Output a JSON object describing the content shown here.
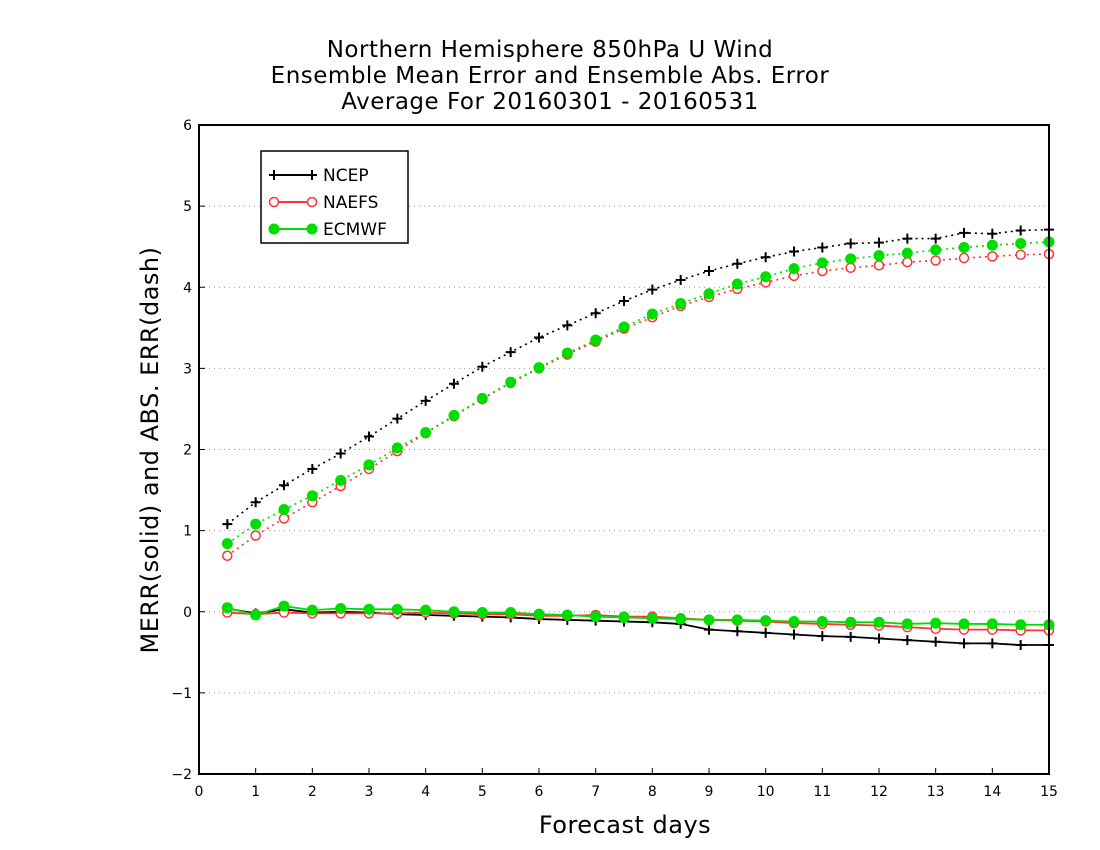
{
  "chart_data": {
    "type": "line",
    "title_lines": [
      "Northern Hemisphere 850hPa U Wind",
      "Ensemble Mean Error and Ensemble Abs. Error",
      "Average For 20160301 - 20160531"
    ],
    "xlabel": "Forecast days",
    "ylabel": "MERR(solid) and ABS. ERR(dash)",
    "xlim": [
      0,
      15
    ],
    "ylim": [
      -2,
      6
    ],
    "xticks": [
      0,
      1,
      2,
      3,
      4,
      5,
      6,
      7,
      8,
      9,
      10,
      11,
      12,
      13,
      14,
      15
    ],
    "yticks": [
      -2,
      -1,
      0,
      1,
      2,
      3,
      4,
      5,
      6
    ],
    "grid": "horizontal dotted",
    "legend_position": "top-left",
    "x": [
      0.5,
      1,
      1.5,
      2,
      2.5,
      3,
      3.5,
      4,
      4.5,
      5,
      5.5,
      6,
      6.5,
      7,
      7.5,
      8,
      8.5,
      9,
      9.5,
      10,
      10.5,
      11,
      11.5,
      12,
      12.5,
      13,
      13.5,
      14,
      14.5,
      15
    ],
    "series": [
      {
        "name": "NCEP",
        "color": "#000000",
        "marker": "plus",
        "mean_error": [
          0.04,
          -0.02,
          0.03,
          -0.01,
          0.0,
          -0.01,
          -0.03,
          -0.04,
          -0.05,
          -0.06,
          -0.07,
          -0.09,
          -0.1,
          -0.11,
          -0.12,
          -0.13,
          -0.15,
          -0.22,
          -0.24,
          -0.26,
          -0.28,
          -0.3,
          -0.31,
          -0.33,
          -0.35,
          -0.37,
          -0.39,
          -0.39,
          -0.41,
          -0.41
        ],
        "abs_error": [
          1.08,
          1.35,
          1.56,
          1.76,
          1.95,
          2.16,
          2.38,
          2.6,
          2.81,
          3.02,
          3.2,
          3.38,
          3.53,
          3.68,
          3.83,
          3.97,
          4.09,
          4.2,
          4.29,
          4.37,
          4.44,
          4.49,
          4.54,
          4.55,
          4.6,
          4.6,
          4.67,
          4.66,
          4.7,
          4.71
        ]
      },
      {
        "name": "NAEFS",
        "color": "#ff3333",
        "marker": "open-circle",
        "mean_error": [
          -0.01,
          -0.03,
          -0.01,
          -0.02,
          -0.02,
          -0.02,
          -0.02,
          -0.01,
          -0.02,
          -0.03,
          -0.03,
          -0.05,
          -0.05,
          -0.04,
          -0.06,
          -0.06,
          -0.08,
          -0.1,
          -0.11,
          -0.12,
          -0.14,
          -0.15,
          -0.16,
          -0.17,
          -0.19,
          -0.21,
          -0.22,
          -0.22,
          -0.23,
          -0.23
        ],
        "abs_error": [
          0.69,
          0.94,
          1.15,
          1.35,
          1.55,
          1.76,
          1.98,
          2.2,
          2.41,
          2.62,
          2.82,
          3.0,
          3.17,
          3.33,
          3.49,
          3.63,
          3.77,
          3.88,
          3.98,
          4.06,
          4.14,
          4.2,
          4.24,
          4.27,
          4.31,
          4.33,
          4.36,
          4.38,
          4.4,
          4.41
        ]
      },
      {
        "name": "ECMWF",
        "color": "#00dd00",
        "marker": "filled-circle",
        "mean_error": [
          0.05,
          -0.04,
          0.07,
          0.02,
          0.04,
          0.03,
          0.03,
          0.02,
          0.0,
          -0.01,
          -0.01,
          -0.03,
          -0.04,
          -0.06,
          -0.07,
          -0.08,
          -0.09,
          -0.1,
          -0.1,
          -0.11,
          -0.12,
          -0.12,
          -0.13,
          -0.13,
          -0.15,
          -0.14,
          -0.15,
          -0.15,
          -0.16,
          -0.16
        ],
        "abs_error": [
          0.84,
          1.08,
          1.26,
          1.43,
          1.62,
          1.81,
          2.02,
          2.21,
          2.42,
          2.63,
          2.83,
          3.01,
          3.19,
          3.35,
          3.51,
          3.67,
          3.8,
          3.92,
          4.04,
          4.13,
          4.23,
          4.3,
          4.35,
          4.39,
          4.42,
          4.46,
          4.49,
          4.52,
          4.54,
          4.56
        ]
      }
    ]
  }
}
